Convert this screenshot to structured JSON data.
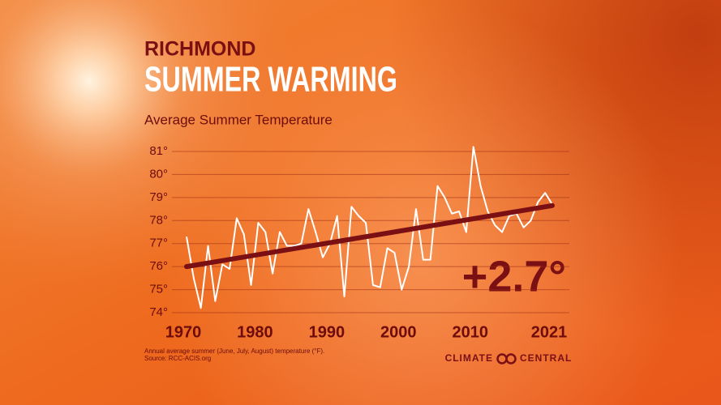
{
  "chart_data": {
    "type": "line",
    "kicker": "RICHMOND",
    "title": "SUMMER WARMING",
    "subtitle": "Average Summer Temperature",
    "x": [
      1970,
      1971,
      1972,
      1973,
      1974,
      1975,
      1976,
      1977,
      1978,
      1979,
      1980,
      1981,
      1982,
      1983,
      1984,
      1985,
      1986,
      1987,
      1988,
      1989,
      1990,
      1991,
      1992,
      1993,
      1994,
      1995,
      1996,
      1997,
      1998,
      1999,
      2000,
      2001,
      2002,
      2003,
      2004,
      2005,
      2006,
      2007,
      2008,
      2009,
      2010,
      2011,
      2012,
      2013,
      2014,
      2015,
      2016,
      2017,
      2018,
      2019,
      2020,
      2021
    ],
    "series": [
      {
        "name": "Average summer temperature",
        "color": "#ffffff",
        "values": [
          77.3,
          75.5,
          74.2,
          76.9,
          74.5,
          76.1,
          75.9,
          78.1,
          77.4,
          75.2,
          77.9,
          77.5,
          75.7,
          77.5,
          76.9,
          76.9,
          77.0,
          78.5,
          77.5,
          76.4,
          77.0,
          78.2,
          74.7,
          78.6,
          78.2,
          77.9,
          75.2,
          75.1,
          76.8,
          76.6,
          75.0,
          76.0,
          78.5,
          76.3,
          76.3,
          79.5,
          79.0,
          78.3,
          78.4,
          77.5,
          81.2,
          79.5,
          78.4,
          77.8,
          77.5,
          78.2,
          78.3,
          77.7,
          78.0,
          78.8,
          79.2,
          78.7
        ]
      }
    ],
    "trend": {
      "color": "#7a0f14",
      "x": [
        1970,
        2021
      ],
      "values": [
        76.0,
        78.65
      ]
    },
    "annotation": "+2.7°",
    "xlim": [
      1970,
      2021
    ],
    "xticks": [
      1970,
      1980,
      1990,
      2000,
      2010,
      2021
    ],
    "ylim": [
      74,
      81
    ],
    "yticks": [
      {
        "value": 74,
        "label": "74°"
      },
      {
        "value": 75,
        "label": "75°"
      },
      {
        "value": 76,
        "label": "76°"
      },
      {
        "value": 77,
        "label": "77°"
      },
      {
        "value": 78,
        "label": "78°"
      },
      {
        "value": 79,
        "label": "79°"
      },
      {
        "value": 80,
        "label": "80°"
      },
      {
        "value": 81,
        "label": "81°"
      }
    ],
    "grid": true,
    "footnote": [
      "Annual average summer (June, July, August) temperature (°F).",
      "Source: RCC-ACIS.org"
    ],
    "brand": [
      "CLIMATE",
      "CENTRAL"
    ]
  }
}
